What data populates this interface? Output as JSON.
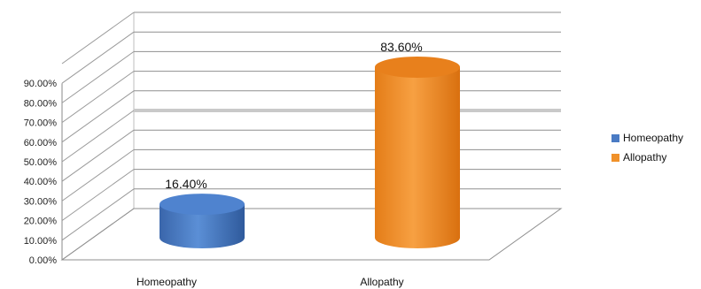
{
  "chart_data": {
    "type": "bar",
    "style": "3d-cylinder",
    "categories": [
      "Homeopathy",
      "Allopathy"
    ],
    "series": [
      {
        "name": "Homeopathy",
        "values": [
          16.4,
          null
        ],
        "color": "#4a7bc4"
      },
      {
        "name": "Allopathy",
        "values": [
          null,
          83.6
        ],
        "color": "#f0912a"
      }
    ],
    "data_labels": [
      "16.40%",
      "83.60%"
    ],
    "y_ticks": [
      "0.00%",
      "10.00%",
      "20.00%",
      "30.00%",
      "40.00%",
      "50.00%",
      "60.00%",
      "70.00%",
      "80.00%",
      "90.00%"
    ],
    "ylim": [
      0,
      100
    ],
    "grid": true,
    "legend_position": "right",
    "title": "",
    "xlabel": "",
    "ylabel": ""
  },
  "legend": {
    "items": [
      {
        "label": "Homeopathy",
        "color": "#4a7bc4"
      },
      {
        "label": "Allopathy",
        "color": "#f0912a"
      }
    ]
  }
}
